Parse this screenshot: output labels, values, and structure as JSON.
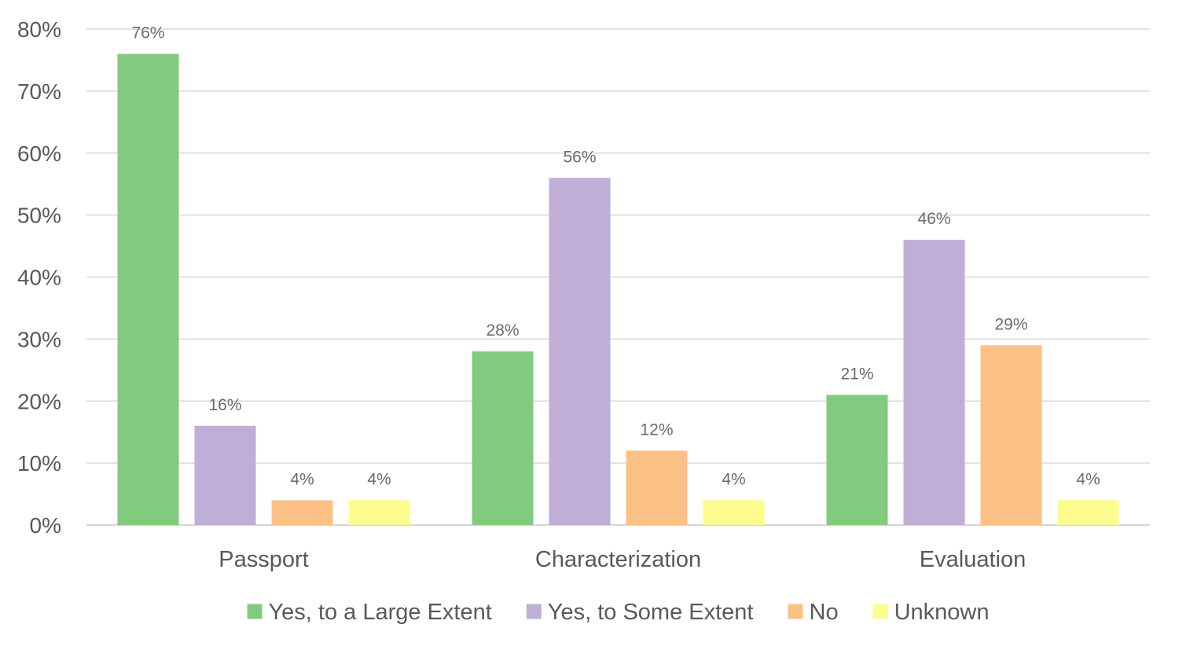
{
  "chart_data": {
    "type": "bar",
    "categories": [
      "Passport",
      "Characterization",
      "Evaluation"
    ],
    "series": [
      {
        "name": "Yes, to a Large Extent",
        "values": [
          76,
          28,
          21
        ],
        "labels": [
          "76%",
          "28%",
          "21%"
        ],
        "color": "#82cb7e"
      },
      {
        "name": "Yes, to Some Extent",
        "values": [
          16,
          56,
          46
        ],
        "labels": [
          "16%",
          "56%",
          "46%"
        ],
        "color": "#bfaed5"
      },
      {
        "name": "No",
        "values": [
          4,
          12,
          29
        ],
        "labels": [
          "4%",
          "12%",
          "29%"
        ],
        "color": "#fbc185"
      },
      {
        "name": "Unknown",
        "values": [
          4,
          4,
          4
        ],
        "labels": [
          "4%",
          "4%",
          "4%"
        ],
        "color": "#fdfd8f"
      }
    ],
    "ylim": [
      0,
      80
    ],
    "yticks": [
      "0%",
      "10%",
      "20%",
      "30%",
      "40%",
      "50%",
      "60%",
      "70%",
      "80%"
    ],
    "grid": true,
    "legend": "bottom",
    "title": "",
    "xlabel": "",
    "ylabel": ""
  }
}
